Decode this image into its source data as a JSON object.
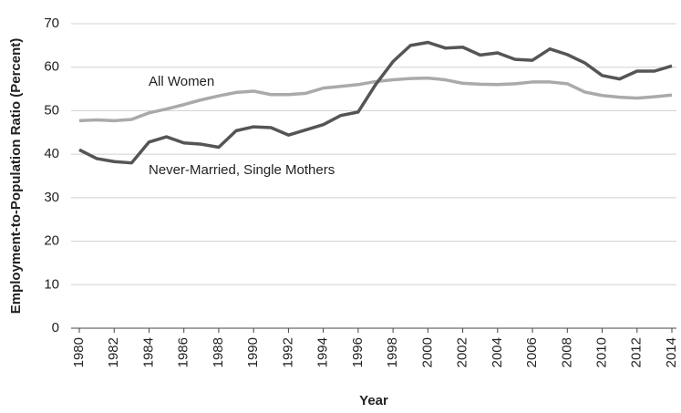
{
  "chart_data": {
    "type": "line",
    "y_label": "Employment-to-Population Ratio (Percent)",
    "x_label": "Year",
    "x": [
      1980,
      1981,
      1982,
      1983,
      1984,
      1985,
      1986,
      1987,
      1988,
      1989,
      1990,
      1991,
      1992,
      1993,
      1994,
      1995,
      1996,
      1997,
      1998,
      1999,
      2000,
      2001,
      2002,
      2003,
      2004,
      2005,
      2006,
      2007,
      2008,
      2009,
      2010,
      2011,
      2012,
      2013,
      2014
    ],
    "series": [
      {
        "name": "All Women",
        "color": "#aaaaaa",
        "values": [
          47.7,
          47.9,
          47.7,
          48,
          49.5,
          50.4,
          51.4,
          52.5,
          53.4,
          54.2,
          54.5,
          53.7,
          53.7,
          54,
          55.2,
          55.6,
          56,
          56.7,
          57.1,
          57.4,
          57.5,
          57.1,
          56.3,
          56.1,
          56,
          56.2,
          56.6,
          56.6,
          56.2,
          54.3,
          53.5,
          53.1,
          52.9,
          53.2,
          53.6
        ]
      },
      {
        "name": "Never-Married, Single Mothers",
        "color": "#555555",
        "values": [
          41,
          39,
          38.3,
          38,
          42.8,
          44,
          42.6,
          42.3,
          41.6,
          45.4,
          46.3,
          46.1,
          44.4,
          45.6,
          46.8,
          48.9,
          49.7,
          56,
          61.3,
          65,
          65.7,
          64.4,
          64.6,
          62.8,
          63.3,
          61.8,
          61.6,
          64.2,
          62.9,
          61,
          58.1,
          57.3,
          59.1,
          59.1,
          60.3
        ]
      }
    ],
    "xlim": [
      1980,
      2014
    ],
    "xticks": [
      1980,
      1982,
      1984,
      1986,
      1988,
      1990,
      1992,
      1994,
      1996,
      1998,
      2000,
      2002,
      2004,
      2006,
      2008,
      2010,
      2012,
      2014
    ],
    "ylim": [
      0,
      70
    ],
    "yticks": [
      0,
      10,
      20,
      30,
      40,
      50,
      60,
      70
    ],
    "grid": true
  }
}
